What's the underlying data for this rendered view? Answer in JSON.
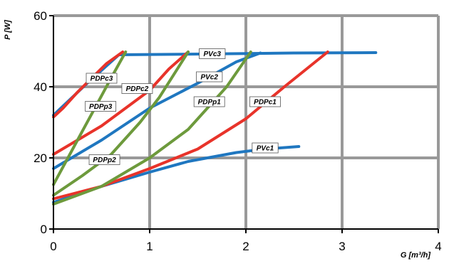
{
  "chart_data": {
    "type": "line",
    "title": "",
    "xlabel": "G [m³/h]",
    "ylabel": "P [W]",
    "xlim": [
      0,
      4
    ],
    "ylim": [
      0,
      60
    ],
    "x_ticks": [
      "0",
      "1",
      "2",
      "3",
      "4"
    ],
    "y_ticks": [
      "0",
      "20",
      "40",
      "60"
    ],
    "grid": true,
    "legend": "inline labels",
    "colors": {
      "PV": "#1f77c0",
      "PDPc": "#e8332a",
      "PDPp": "#6d9a3c",
      "grid": "#999999"
    },
    "series": [
      {
        "name": "PVc1",
        "color": "#1f77c0",
        "x": [
          0,
          0.5,
          1.0,
          1.4,
          1.9,
          2.2,
          2.55
        ],
        "y": [
          7.5,
          12,
          16,
          19,
          21.5,
          22.5,
          23.2
        ]
      },
      {
        "name": "PVc2",
        "color": "#1f77c0",
        "x": [
          0,
          0.5,
          1.0,
          1.5,
          1.9,
          2.15
        ],
        "y": [
          17,
          25,
          34,
          41,
          47,
          49.5
        ]
      },
      {
        "name": "PVc3",
        "color": "#1f77c0",
        "x": [
          0,
          0.35,
          0.68,
          1.5,
          2.5,
          3.35
        ],
        "y": [
          32,
          41,
          49,
          49.2,
          49.5,
          49.6
        ]
      },
      {
        "name": "PDPc1",
        "color": "#e8332a",
        "x": [
          0,
          0.5,
          1.0,
          1.5,
          2.0,
          2.4,
          2.85
        ],
        "y": [
          8.5,
          12,
          17,
          22.5,
          31,
          40,
          49.8
        ]
      },
      {
        "name": "PDPc2",
        "color": "#e8332a",
        "x": [
          0,
          0.25,
          0.5,
          0.75,
          1.0,
          1.2,
          1.4
        ],
        "y": [
          21,
          25,
          29,
          34,
          39,
          45,
          49.8
        ]
      },
      {
        "name": "PDPc3",
        "color": "#e8332a",
        "x": [
          0,
          0.1,
          0.25,
          0.4,
          0.55,
          0.72
        ],
        "y": [
          31.5,
          34,
          38.5,
          42.5,
          46.5,
          49.8
        ]
      },
      {
        "name": "PDPp1",
        "color": "#6d9a3c",
        "x": [
          0,
          0.5,
          1.0,
          1.4,
          1.8,
          2.05
        ],
        "y": [
          7,
          12,
          20,
          28,
          40,
          49.8
        ]
      },
      {
        "name": "PDPp2",
        "color": "#6d9a3c",
        "x": [
          0,
          0.3,
          0.6,
          0.9,
          1.1,
          1.4
        ],
        "y": [
          9.5,
          15,
          21,
          30,
          37,
          49.8
        ]
      },
      {
        "name": "PDPp3",
        "color": "#6d9a3c",
        "x": [
          0,
          0.15,
          0.3,
          0.45,
          0.6,
          0.75
        ],
        "y": [
          12.5,
          20,
          27.5,
          35,
          42.5,
          49.8
        ]
      }
    ],
    "annotations": [
      {
        "text": "PVc1",
        "x": 2.2,
        "y": 22.8
      },
      {
        "text": "PVc2",
        "x": 1.62,
        "y": 42.8
      },
      {
        "text": "PVc3",
        "x": 1.65,
        "y": 49.3
      },
      {
        "text": "PDPc1",
        "x": 2.2,
        "y": 35.8
      },
      {
        "text": "PDPc2",
        "x": 0.87,
        "y": 39.5
      },
      {
        "text": "PDPc3",
        "x": 0.5,
        "y": 42.4
      },
      {
        "text": "PDPp1",
        "x": 1.62,
        "y": 35.8
      },
      {
        "text": "PDPp2",
        "x": 0.53,
        "y": 19.5
      },
      {
        "text": "PDPp3",
        "x": 0.49,
        "y": 34.5
      }
    ]
  }
}
